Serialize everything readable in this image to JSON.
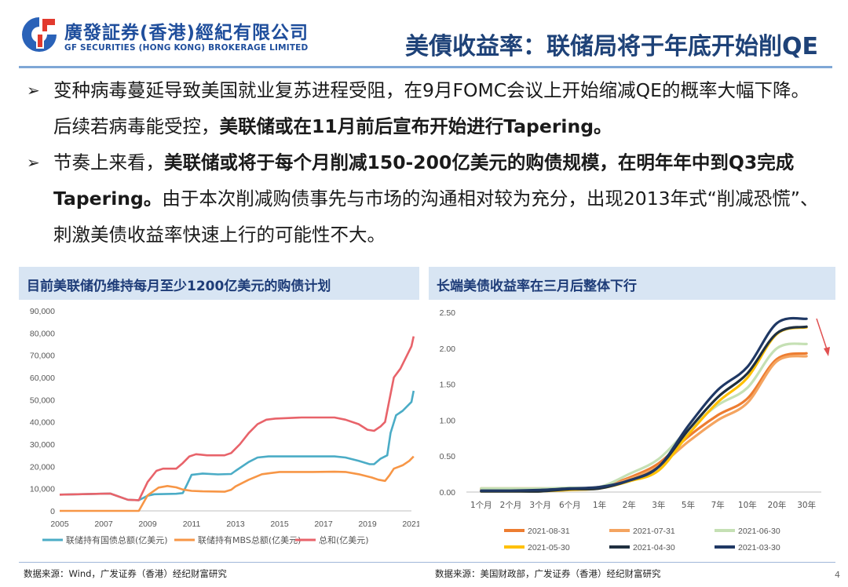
{
  "header": {
    "logo_cn": "廣發証券(香港)經紀有限公司",
    "logo_en": "GF SECURITIES (HONG KONG) BROKERAGE LIMITED",
    "title": "美債收益率：联储局将于年底开始削QE"
  },
  "bullets": [
    {
      "parts": [
        {
          "text": "变种病毒蔓延导致美国就业复苏进程受阻，在9月FOMC会议上开始缩减QE的概率大幅下降。后续若病毒能受控，",
          "bold": false
        },
        {
          "text": "美联储或在11月前后宣布开始进行Tapering。",
          "bold": true
        }
      ]
    },
    {
      "parts": [
        {
          "text": "节奏上来看，",
          "bold": false
        },
        {
          "text": "美联储或将于每个月削减150-200亿美元的购债规模，在明年年中到Q3完成Tapering。",
          "bold": true
        },
        {
          "text": "由于本次削减购债事先与市场的沟通相对较为充分，出现2013年式“削减恐慌”、刺激美债收益率快速上行的可能性不大。",
          "bold": false
        }
      ]
    }
  ],
  "colors": {
    "treasury": "#4bacc6",
    "mbs": "#f79646",
    "total": "#e8636a",
    "curve_0831": "#ed7d31",
    "curve_0731": "#f4a460",
    "curve_0630": "#c5e0b4",
    "curve_0530": "#ffc000",
    "curve_0430": "#203040",
    "curve_0330": "#1f3864",
    "arrow": "#e05050"
  },
  "panels": {
    "left_title": "目前美联储仍维持每月至少1200亿美元的购债计划",
    "right_title": "长端美债收益率在三月后整体下行",
    "left_source": "数据来源：Wind，广发证券（香港）经纪财富研究",
    "right_source": "数据来源：美国财政部，广发证券（香港）经纪财富研究"
  },
  "page_number": "4",
  "chart_data": [
    {
      "type": "line",
      "title": "目前美联储仍维持每月至少1200亿美元的购债计划",
      "xlim": [
        2005,
        2021
      ],
      "ylim": [
        0,
        90000
      ],
      "x_ticks": [
        "2005",
        "2007",
        "2009",
        "2011",
        "2013",
        "2015",
        "2017",
        "2019",
        "2021"
      ],
      "y_ticks": [
        "0",
        "10,000",
        "20,000",
        "30,000",
        "40,000",
        "50,000",
        "60,000",
        "70,000",
        "80,000",
        "90,000"
      ],
      "legend_position": "bottom",
      "grid": false,
      "series": [
        {
          "name": "联储持有国债总额(亿美元)",
          "points": [
            [
              2005,
              7300
            ],
            [
              2007.3,
              7800
            ],
            [
              2008.1,
              5000
            ],
            [
              2008.6,
              4800
            ],
            [
              2009,
              6800
            ],
            [
              2009.3,
              7500
            ],
            [
              2010.3,
              7700
            ],
            [
              2010.6,
              8000
            ],
            [
              2010.8,
              12000
            ],
            [
              2011,
              16200
            ],
            [
              2011.5,
              16800
            ],
            [
              2012.2,
              16400
            ],
            [
              2012.8,
              16600
            ],
            [
              2013,
              18000
            ],
            [
              2013.6,
              22000
            ],
            [
              2014,
              24000
            ],
            [
              2014.5,
              24500
            ],
            [
              2016,
              24500
            ],
            [
              2017.5,
              24500
            ],
            [
              2018,
              24000
            ],
            [
              2018.6,
              22500
            ],
            [
              2019.1,
              21000
            ],
            [
              2019.3,
              21000
            ],
            [
              2019.6,
              23500
            ],
            [
              2019.9,
              25000
            ],
            [
              2020.05,
              35000
            ],
            [
              2020.3,
              43000
            ],
            [
              2020.6,
              45000
            ],
            [
              2021,
              49000
            ],
            [
              2021.1,
              54000
            ]
          ]
        },
        {
          "name": "联储持有MBS总额(亿美元)",
          "points": [
            [
              2005,
              0
            ],
            [
              2008,
              0
            ],
            [
              2008.6,
              0
            ],
            [
              2009,
              7000
            ],
            [
              2009.5,
              10500
            ],
            [
              2009.9,
              11200
            ],
            [
              2010.3,
              10600
            ],
            [
              2010.6,
              9600
            ],
            [
              2011,
              9000
            ],
            [
              2011.5,
              8800
            ],
            [
              2012,
              8700
            ],
            [
              2012.5,
              8600
            ],
            [
              2012.8,
              9500
            ],
            [
              2013,
              11000
            ],
            [
              2013.6,
              14000
            ],
            [
              2014.2,
              16500
            ],
            [
              2014.6,
              17000
            ],
            [
              2015,
              17500
            ],
            [
              2016.5,
              17500
            ],
            [
              2017.5,
              17600
            ],
            [
              2018,
              17500
            ],
            [
              2018.6,
              16500
            ],
            [
              2019.2,
              15000
            ],
            [
              2019.5,
              14000
            ],
            [
              2019.8,
              13500
            ],
            [
              2020.0,
              16000
            ],
            [
              2020.2,
              19000
            ],
            [
              2020.6,
              20500
            ],
            [
              2020.9,
              22500
            ],
            [
              2021.1,
              24500
            ]
          ]
        },
        {
          "name": "总和(亿美元)",
          "points": [
            [
              2005,
              7300
            ],
            [
              2007.3,
              7800
            ],
            [
              2008.1,
              5000
            ],
            [
              2008.6,
              4800
            ],
            [
              2009,
              13000
            ],
            [
              2009.4,
              18000
            ],
            [
              2009.7,
              19000
            ],
            [
              2010.3,
              19000
            ],
            [
              2010.6,
              21500
            ],
            [
              2010.9,
              24500
            ],
            [
              2011.2,
              25500
            ],
            [
              2011.7,
              25000
            ],
            [
              2012.5,
              25000
            ],
            [
              2012.8,
              26000
            ],
            [
              2013.2,
              30000
            ],
            [
              2013.6,
              35000
            ],
            [
              2014,
              39000
            ],
            [
              2014.4,
              41000
            ],
            [
              2014.8,
              41500
            ],
            [
              2016,
              42000
            ],
            [
              2017.5,
              42000
            ],
            [
              2018,
              41000
            ],
            [
              2018.6,
              39000
            ],
            [
              2019,
              36500
            ],
            [
              2019.3,
              36000
            ],
            [
              2019.6,
              38000
            ],
            [
              2019.8,
              40000
            ],
            [
              2020.0,
              50000
            ],
            [
              2020.2,
              60000
            ],
            [
              2020.5,
              64000
            ],
            [
              2020.8,
              70000
            ],
            [
              2021.0,
              74000
            ],
            [
              2021.1,
              78500
            ]
          ]
        }
      ]
    },
    {
      "type": "line",
      "title": "长端美债收益率在三月后整体下行",
      "x": [
        "1个月",
        "2个月",
        "3个月",
        "6个月",
        "1年",
        "2年",
        "3年",
        "5年",
        "7年",
        "10年",
        "20年",
        "30年"
      ],
      "ylim": [
        0,
        2.5
      ],
      "y_ticks": [
        "0.00",
        "0.50",
        "1.00",
        "1.50",
        "2.00",
        "2.50"
      ],
      "legend_position": "bottom",
      "grid": false,
      "series": [
        {
          "name": "2021-08-31",
          "values": [
            0.04,
            0.04,
            0.04,
            0.05,
            0.07,
            0.2,
            0.4,
            0.77,
            1.07,
            1.3,
            1.85,
            1.93
          ]
        },
        {
          "name": "2021-07-31",
          "values": [
            0.05,
            0.05,
            0.05,
            0.05,
            0.07,
            0.18,
            0.36,
            0.7,
            1.0,
            1.24,
            1.82,
            1.89
          ]
        },
        {
          "name": "2021-06-30",
          "values": [
            0.05,
            0.05,
            0.05,
            0.06,
            0.07,
            0.25,
            0.46,
            0.87,
            1.21,
            1.45,
            2.0,
            2.06
          ]
        },
        {
          "name": "2021-05-30",
          "values": [
            0.01,
            0.01,
            0.01,
            0.03,
            0.05,
            0.15,
            0.3,
            0.8,
            1.25,
            1.59,
            2.2,
            2.29
          ]
        },
        {
          "name": "2021-04-30",
          "values": [
            0.01,
            0.01,
            0.01,
            0.04,
            0.05,
            0.16,
            0.35,
            0.86,
            1.32,
            1.65,
            2.21,
            2.3
          ]
        },
        {
          "name": "2021-03-30",
          "values": [
            0.02,
            0.02,
            0.03,
            0.05,
            0.07,
            0.16,
            0.35,
            0.92,
            1.42,
            1.74,
            2.35,
            2.41
          ]
        }
      ]
    }
  ]
}
